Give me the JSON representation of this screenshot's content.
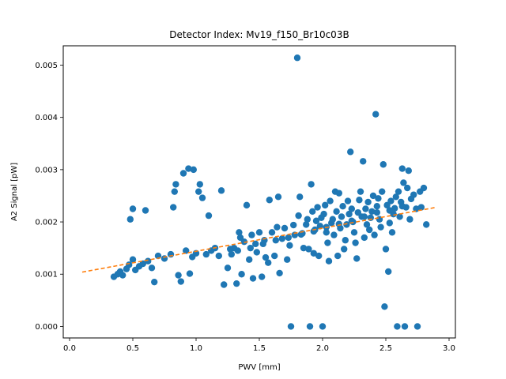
{
  "chart_data": {
    "type": "scatter",
    "title": "Detector Index: Mv19_f150_Br10c03B",
    "xlabel": "PWV [mm]",
    "ylabel": "A2 Signal [pW]",
    "xlim": [
      -0.05,
      3.05
    ],
    "ylim": [
      -0.00022,
      0.00537
    ],
    "xticks": [
      0.0,
      0.5,
      1.0,
      1.5,
      2.0,
      2.5,
      3.0
    ],
    "xtick_labels": [
      "0.0",
      "0.5",
      "1.0",
      "1.5",
      "2.0",
      "2.5",
      "3.0"
    ],
    "yticks": [
      0.0,
      0.001,
      0.002,
      0.003,
      0.004,
      0.005
    ],
    "ytick_labels": [
      "0.000",
      "0.001",
      "0.002",
      "0.003",
      "0.004",
      "0.005"
    ],
    "colors": {
      "points": "#1f77b4",
      "fit": "#ff7f0e"
    },
    "fit_line": {
      "x": [
        0.1,
        2.9
      ],
      "y": [
        0.00104,
        0.00228
      ]
    },
    "series": [
      {
        "name": "A2 Signal",
        "points": [
          [
            0.35,
            0.00095
          ],
          [
            0.38,
            0.001
          ],
          [
            0.4,
            0.00105
          ],
          [
            0.42,
            0.00098
          ],
          [
            0.45,
            0.0011
          ],
          [
            0.47,
            0.00118
          ],
          [
            0.48,
            0.00205
          ],
          [
            0.5,
            0.00225
          ],
          [
            0.5,
            0.00128
          ],
          [
            0.52,
            0.00108
          ],
          [
            0.55,
            0.00115
          ],
          [
            0.58,
            0.0012
          ],
          [
            0.6,
            0.00222
          ],
          [
            0.62,
            0.00125
          ],
          [
            0.65,
            0.00112
          ],
          [
            0.67,
            0.00085
          ],
          [
            0.7,
            0.00135
          ],
          [
            0.75,
            0.0013
          ],
          [
            0.8,
            0.00138
          ],
          [
            0.82,
            0.00228
          ],
          [
            0.83,
            0.00258
          ],
          [
            0.84,
            0.00272
          ],
          [
            0.86,
            0.00098
          ],
          [
            0.88,
            0.00086
          ],
          [
            0.9,
            0.00293
          ],
          [
            0.92,
            0.00145
          ],
          [
            0.94,
            0.00302
          ],
          [
            0.95,
            0.00101
          ],
          [
            0.97,
            0.00133
          ],
          [
            0.98,
            0.003
          ],
          [
            1.0,
            0.0014
          ],
          [
            1.02,
            0.00258
          ],
          [
            1.03,
            0.00272
          ],
          [
            1.05,
            0.00246
          ],
          [
            1.08,
            0.00138
          ],
          [
            1.1,
            0.00212
          ],
          [
            1.12,
            0.00145
          ],
          [
            1.15,
            0.0015
          ],
          [
            1.18,
            0.00135
          ],
          [
            1.2,
            0.0026
          ],
          [
            1.22,
            0.0008
          ],
          [
            1.25,
            0.00112
          ],
          [
            1.27,
            0.00148
          ],
          [
            1.3,
            0.0015
          ],
          [
            1.32,
            0.00082
          ],
          [
            1.34,
            0.0018
          ],
          [
            1.35,
            0.0017
          ],
          [
            1.36,
            0.001
          ],
          [
            1.38,
            0.00162
          ],
          [
            1.4,
            0.00232
          ],
          [
            1.42,
            0.00128
          ],
          [
            1.44,
            0.00175
          ],
          [
            1.45,
            0.00092
          ],
          [
            1.47,
            0.00158
          ],
          [
            1.48,
            0.00142
          ],
          [
            1.5,
            0.0018
          ],
          [
            1.52,
            0.00095
          ],
          [
            1.54,
            0.00165
          ],
          [
            1.55,
            0.00132
          ],
          [
            1.57,
            0.00122
          ],
          [
            1.58,
            0.00242
          ],
          [
            1.6,
            0.0018
          ],
          [
            1.62,
            0.00135
          ],
          [
            1.64,
            0.0019
          ],
          [
            1.65,
            0.00248
          ],
          [
            1.66,
            0.00102
          ],
          [
            1.68,
            0.00168
          ],
          [
            1.7,
            0.00188
          ],
          [
            1.72,
            0.00128
          ],
          [
            1.74,
            0.00155
          ],
          [
            1.75,
            0.0
          ],
          [
            1.77,
            0.00194
          ],
          [
            1.78,
            0.00175
          ],
          [
            1.8,
            0.00514
          ],
          [
            1.81,
            0.00212
          ],
          [
            1.82,
            0.00248
          ],
          [
            1.84,
            0.00178
          ],
          [
            1.85,
            0.0015
          ],
          [
            1.87,
            0.00195
          ],
          [
            1.88,
            0.00205
          ],
          [
            1.89,
            0.00148
          ],
          [
            1.9,
            0.0
          ],
          [
            1.91,
            0.00272
          ],
          [
            1.92,
            0.0022
          ],
          [
            1.93,
            0.0014
          ],
          [
            1.94,
            0.00185
          ],
          [
            1.95,
            0.00202
          ],
          [
            1.96,
            0.00228
          ],
          [
            1.97,
            0.00135
          ],
          [
            1.98,
            0.00192
          ],
          [
            1.99,
            0.00208
          ],
          [
            2.0,
            0.0
          ],
          [
            2.01,
            0.00215
          ],
          [
            2.02,
            0.00232
          ],
          [
            2.03,
            0.0018
          ],
          [
            2.04,
            0.0016
          ],
          [
            2.05,
            0.00125
          ],
          [
            2.06,
            0.0024
          ],
          [
            2.07,
            0.00198
          ],
          [
            2.08,
            0.00205
          ],
          [
            2.09,
            0.00175
          ],
          [
            2.1,
            0.00258
          ],
          [
            2.11,
            0.0022
          ],
          [
            2.12,
            0.00135
          ],
          [
            2.13,
            0.00255
          ],
          [
            2.14,
            0.00188
          ],
          [
            2.15,
            0.0021
          ],
          [
            2.16,
            0.0023
          ],
          [
            2.17,
            0.00148
          ],
          [
            2.18,
            0.00165
          ],
          [
            2.19,
            0.00195
          ],
          [
            2.2,
            0.0024
          ],
          [
            2.21,
            0.00215
          ],
          [
            2.22,
            0.00334
          ],
          [
            2.23,
            0.00225
          ],
          [
            2.24,
            0.002
          ],
          [
            2.25,
            0.0018
          ],
          [
            2.26,
            0.0016
          ],
          [
            2.27,
            0.0013
          ],
          [
            2.28,
            0.00218
          ],
          [
            2.29,
            0.00242
          ],
          [
            2.3,
            0.00258
          ],
          [
            2.31,
            0.0021
          ],
          [
            2.32,
            0.00316
          ],
          [
            2.33,
            0.0017
          ],
          [
            2.34,
            0.00225
          ],
          [
            2.35,
            0.00195
          ],
          [
            2.36,
            0.00238
          ],
          [
            2.37,
            0.00185
          ],
          [
            2.38,
            0.00208
          ],
          [
            2.39,
            0.0022
          ],
          [
            2.4,
            0.0025
          ],
          [
            2.41,
            0.00175
          ],
          [
            2.42,
            0.00406
          ],
          [
            2.43,
            0.0023
          ],
          [
            2.44,
            0.00245
          ],
          [
            2.45,
            0.00205
          ],
          [
            2.46,
            0.0019
          ],
          [
            2.47,
            0.00258
          ],
          [
            2.48,
            0.0031
          ],
          [
            2.49,
            0.00038
          ],
          [
            2.5,
            0.00148
          ],
          [
            2.51,
            0.00232
          ],
          [
            2.52,
            0.00105
          ],
          [
            2.53,
            0.00198
          ],
          [
            2.54,
            0.0024
          ],
          [
            2.55,
            0.0018
          ],
          [
            2.56,
            0.00215
          ],
          [
            2.57,
            0.00226
          ],
          [
            2.58,
            0.00248
          ],
          [
            2.59,
            0.0
          ],
          [
            2.6,
            0.00258
          ],
          [
            2.61,
            0.0021
          ],
          [
            2.62,
            0.00238
          ],
          [
            2.63,
            0.00302
          ],
          [
            2.64,
            0.00275
          ],
          [
            2.65,
            0.0
          ],
          [
            2.66,
            0.00228
          ],
          [
            2.67,
            0.00265
          ],
          [
            2.68,
            0.00298
          ],
          [
            2.69,
            0.00205
          ],
          [
            2.7,
            0.00244
          ],
          [
            2.72,
            0.00252
          ],
          [
            2.74,
            0.00225
          ],
          [
            2.75,
            0.0
          ],
          [
            2.77,
            0.00258
          ],
          [
            2.78,
            0.00228
          ],
          [
            2.8,
            0.00265
          ],
          [
            2.82,
            0.00195
          ],
          [
            1.28,
            0.00138
          ],
          [
            1.33,
            0.00145
          ],
          [
            1.43,
            0.0015
          ],
          [
            1.53,
            0.00158
          ],
          [
            1.63,
            0.00165
          ],
          [
            1.73,
            0.0017
          ],
          [
            1.83,
            0.00176
          ],
          [
            1.93,
            0.00182
          ],
          [
            2.03,
            0.0019
          ],
          [
            2.13,
            0.00196
          ],
          [
            2.23,
            0.00202
          ],
          [
            2.33,
            0.0021
          ],
          [
            2.43,
            0.00218
          ],
          [
            2.53,
            0.00222
          ],
          [
            2.63,
            0.0023
          ]
        ]
      }
    ]
  }
}
